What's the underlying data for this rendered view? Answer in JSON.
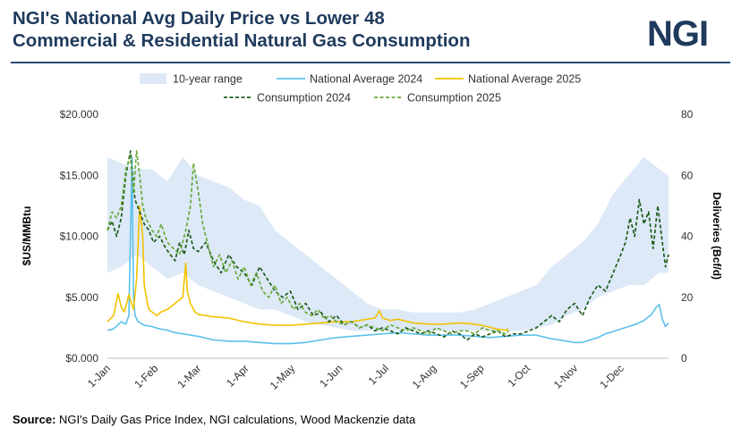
{
  "header": {
    "title_line1": "NGI's National Avg Daily Price vs Lower 48",
    "title_line2": "Commercial & Residential Natural Gas Consumption",
    "logo": "NGI"
  },
  "footer": {
    "source_label": "Source:",
    "source_text": " NGI's Daily Gas Price Index, NGI calculations, Wood Mackenzie data"
  },
  "colors": {
    "range": "#dde9f7",
    "avg2024": "#5bc0eb",
    "avg2025": "#f2c200",
    "cons2024": "#1d5c1a",
    "cons2025": "#6aaa3a",
    "title": "#1f3a5c"
  },
  "chart_data": {
    "type": "line",
    "x_unit": "day of year",
    "x_tick_labels": [
      "1-Jan",
      "1-Feb",
      "1-Mar",
      "1-Apr",
      "1-May",
      "1-Jun",
      "1-Jul",
      "1-Aug",
      "1-Sep",
      "1-Oct",
      "1-Nov",
      "1-Dec"
    ],
    "x_tick_days": [
      1,
      32,
      60,
      91,
      121,
      152,
      182,
      213,
      244,
      274,
      305,
      335
    ],
    "x_range": [
      1,
      366
    ],
    "y_left": {
      "label": "$US/MMBtu",
      "range": [
        0,
        20
      ],
      "tick_labels": [
        "$0.000",
        "$5.000",
        "$10.000",
        "$15.000",
        "$20.000"
      ],
      "ticks": [
        0,
        5,
        10,
        15,
        20
      ]
    },
    "y_right": {
      "label": "Deliveries (Bcf/d)",
      "range": [
        0,
        80
      ],
      "ticks": [
        0,
        20,
        40,
        60,
        80
      ],
      "tick_labels": [
        "0",
        "20",
        "40",
        "60",
        "80"
      ]
    },
    "legend": {
      "placement": "top",
      "entries": [
        "10-year range",
        "National Average 2024",
        "National Average 2025",
        "Consumption 2024",
        "Consumption 2025"
      ]
    },
    "grid": false,
    "series": [
      {
        "name": "10-year range",
        "kind": "band",
        "axis": "right",
        "x": [
          1,
          10,
          20,
          30,
          40,
          50,
          60,
          70,
          80,
          90,
          100,
          110,
          120,
          130,
          140,
          150,
          160,
          170,
          180,
          190,
          200,
          210,
          220,
          230,
          240,
          250,
          260,
          270,
          280,
          290,
          300,
          310,
          320,
          330,
          340,
          350,
          360,
          366
        ],
        "low": [
          28,
          30,
          34,
          30,
          26,
          28,
          24,
          22,
          20,
          18,
          16,
          16,
          14,
          12,
          11,
          10,
          9,
          9,
          9,
          9,
          9,
          9,
          9,
          9,
          9,
          9,
          9,
          9,
          10,
          11,
          14,
          16,
          20,
          22,
          24,
          24,
          28,
          28
        ],
        "high": [
          66,
          64,
          62,
          62,
          58,
          66,
          60,
          58,
          56,
          52,
          50,
          42,
          38,
          34,
          30,
          26,
          22,
          18,
          16,
          16,
          15,
          15,
          15,
          15,
          16,
          18,
          20,
          22,
          24,
          30,
          34,
          38,
          44,
          54,
          60,
          66,
          62,
          60
        ]
      },
      {
        "name": "National Average 2024",
        "axis": "left",
        "x": [
          1,
          5,
          10,
          13,
          15,
          17,
          18,
          19,
          21,
          25,
          30,
          35,
          40,
          45,
          50,
          55,
          60,
          70,
          80,
          90,
          100,
          110,
          120,
          130,
          140,
          150,
          160,
          170,
          180,
          190,
          200,
          210,
          220,
          230,
          240,
          250,
          260,
          270,
          280,
          290,
          300,
          305,
          310,
          315,
          320,
          325,
          330,
          335,
          340,
          345,
          350,
          355,
          358,
          360,
          362,
          364,
          366
        ],
        "y": [
          2.3,
          2.4,
          3.0,
          2.8,
          3.5,
          16.5,
          5.0,
          3.5,
          3.0,
          2.7,
          2.6,
          2.4,
          2.3,
          2.1,
          2.0,
          1.9,
          1.8,
          1.5,
          1.4,
          1.4,
          1.3,
          1.2,
          1.2,
          1.3,
          1.5,
          1.7,
          1.8,
          1.9,
          2.0,
          2.1,
          2.0,
          1.9,
          1.9,
          1.9,
          1.8,
          1.7,
          1.8,
          1.9,
          1.9,
          1.6,
          1.4,
          1.3,
          1.3,
          1.5,
          1.7,
          2.0,
          2.2,
          2.4,
          2.6,
          2.8,
          3.1,
          3.6,
          4.2,
          4.4,
          3.2,
          2.6,
          2.9
        ]
      },
      {
        "name": "National Average 2025",
        "axis": "left",
        "x": [
          1,
          5,
          8,
          10,
          12,
          15,
          18,
          20,
          22,
          24,
          25,
          27,
          28,
          30,
          33,
          36,
          40,
          45,
          50,
          52,
          53,
          55,
          58,
          60,
          65,
          70,
          80,
          90,
          100,
          110,
          120,
          130,
          140,
          150,
          160,
          165,
          170,
          175,
          178,
          180,
          185,
          190,
          200,
          210,
          220,
          230,
          240,
          248,
          254,
          260,
          262
        ],
        "y": [
          3.0,
          3.5,
          5.3,
          4.2,
          3.8,
          5.2,
          4.0,
          6.5,
          12.5,
          10.0,
          6.0,
          4.5,
          4.0,
          3.8,
          3.5,
          3.8,
          4.0,
          4.5,
          5.0,
          7.8,
          5.5,
          4.5,
          3.8,
          3.6,
          3.5,
          3.4,
          3.3,
          3.0,
          2.8,
          2.7,
          2.7,
          2.8,
          2.9,
          3.0,
          3.0,
          3.1,
          3.2,
          3.3,
          3.9,
          3.3,
          3.1,
          3.2,
          2.9,
          2.8,
          2.8,
          2.9,
          2.8,
          2.6,
          2.4,
          2.3,
          2.4
        ]
      },
      {
        "name": "Consumption 2024",
        "axis": "right",
        "x": [
          1,
          4,
          7,
          10,
          13,
          16,
          17,
          19,
          22,
          25,
          28,
          31,
          35,
          39,
          42,
          45,
          48,
          51,
          54,
          57,
          60,
          65,
          70,
          75,
          80,
          85,
          90,
          95,
          100,
          105,
          110,
          115,
          120,
          125,
          130,
          135,
          140,
          145,
          150,
          155,
          160,
          165,
          170,
          175,
          180,
          185,
          190,
          195,
          200,
          205,
          210,
          215,
          220,
          225,
          230,
          235,
          240,
          245,
          250,
          255,
          260,
          265,
          270,
          275,
          280,
          285,
          290,
          295,
          300,
          305,
          310,
          315,
          320,
          325,
          330,
          335,
          338,
          341,
          344,
          347,
          350,
          353,
          356,
          359,
          362,
          364,
          366
        ],
        "y": [
          42,
          45,
          40,
          46,
          60,
          68,
          62,
          52,
          48,
          44,
          42,
          38,
          40,
          36,
          34,
          32,
          38,
          34,
          42,
          36,
          35,
          38,
          32,
          28,
          34,
          30,
          28,
          24,
          30,
          26,
          22,
          20,
          22,
          16,
          18,
          14,
          15,
          12,
          14,
          11,
          12,
          10,
          11,
          9,
          10,
          9,
          8,
          10,
          9,
          8,
          9,
          8,
          7,
          9,
          8,
          6,
          8,
          7,
          8,
          9,
          7,
          8,
          8,
          9,
          10,
          12,
          14,
          12,
          16,
          18,
          14,
          20,
          24,
          22,
          28,
          34,
          38,
          46,
          40,
          52,
          44,
          48,
          36,
          50,
          38,
          30,
          34
        ]
      },
      {
        "name": "Consumption 2025",
        "axis": "right",
        "x": [
          1,
          4,
          7,
          10,
          13,
          16,
          18,
          20,
          22,
          24,
          26,
          28,
          30,
          33,
          36,
          40,
          44,
          48,
          52,
          55,
          57,
          60,
          63,
          66,
          70,
          74,
          78,
          82,
          86,
          90,
          94,
          98,
          102,
          106,
          110,
          114,
          118,
          122,
          126,
          130,
          134,
          138,
          142,
          146,
          150,
          155,
          160,
          165,
          170,
          175,
          180,
          185,
          190,
          195,
          200,
          205,
          210,
          215,
          220,
          225,
          230,
          235,
          240,
          245,
          250,
          255,
          260,
          262
        ],
        "y": [
          42,
          48,
          46,
          50,
          62,
          66,
          54,
          68,
          60,
          50,
          46,
          44,
          42,
          40,
          44,
          38,
          36,
          34,
          42,
          50,
          64,
          55,
          44,
          38,
          30,
          34,
          28,
          32,
          26,
          30,
          24,
          28,
          22,
          20,
          24,
          18,
          20,
          16,
          18,
          15,
          14,
          16,
          13,
          14,
          12,
          11,
          12,
          10,
          11,
          10,
          9,
          11,
          10,
          9,
          10,
          9,
          8,
          10,
          9,
          8,
          9,
          9,
          8,
          10,
          9,
          9,
          8,
          9
        ]
      }
    ]
  }
}
